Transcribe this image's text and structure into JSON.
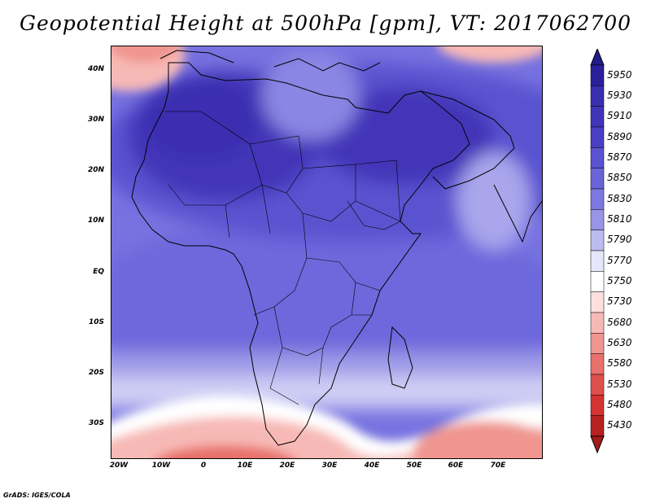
{
  "title": "Geopotential Height at 500hPa [gpm], VT: 2017062700",
  "lat_labels": [
    "40N",
    "30N",
    "20N",
    "10N",
    "EQ",
    "10S",
    "20S",
    "30S"
  ],
  "lon_labels": [
    "20W",
    "10W",
    "0",
    "10E",
    "20E",
    "30E",
    "40E",
    "50E",
    "60E",
    "70E"
  ],
  "colorbar": {
    "levels": [
      "5950",
      "5930",
      "5910",
      "5890",
      "5870",
      "5850",
      "5830",
      "5810",
      "5790",
      "5770",
      "5750",
      "5730",
      "5680",
      "5630",
      "5580",
      "5530",
      "5480",
      "5430"
    ],
    "colors": [
      "#2b1f9c",
      "#3a2fb0",
      "#4234b8",
      "#4a3ec4",
      "#5a52d0",
      "#6a64d8",
      "#7c78e0",
      "#9894e6",
      "#bdbcf0",
      "#e6e6fa",
      "#ffffff",
      "#fde0de",
      "#f7b9b5",
      "#f09590",
      "#e8716c",
      "#df4f4b",
      "#d43431",
      "#b52220"
    ],
    "top_arrow_color": "#231a8c",
    "bottom_arrow_color": "#a21c1c"
  },
  "footer": "GrADS: IGES/COLA"
}
